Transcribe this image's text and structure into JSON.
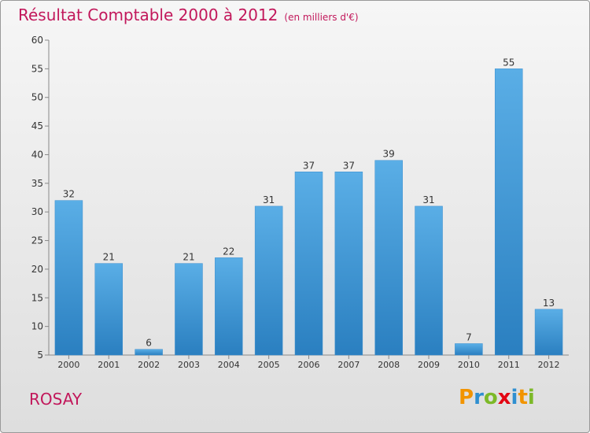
{
  "header": {
    "title": "Résultat Comptable 2000 à 2012",
    "subtitle": "(en milliers d'€)"
  },
  "footer": {
    "town": "ROSAY",
    "logo": "Proxiti"
  },
  "colors": {
    "title": "#c2185b",
    "bar_top": "#5aaee6",
    "bar_bottom": "#2a7fc0"
  },
  "chart_data": {
    "type": "bar",
    "title": "Résultat Comptable 2000 à 2012 (en milliers d'€)",
    "xlabel": "",
    "ylabel": "",
    "categories": [
      "2000",
      "2001",
      "2002",
      "2003",
      "2004",
      "2005",
      "2006",
      "2007",
      "2008",
      "2009",
      "2010",
      "2011",
      "2012"
    ],
    "values": [
      32,
      21,
      6,
      21,
      22,
      31,
      37,
      37,
      39,
      31,
      7,
      55,
      13
    ],
    "ylim": [
      5,
      60
    ],
    "yticks": [
      5,
      10,
      15,
      20,
      25,
      30,
      35,
      40,
      45,
      50,
      55,
      60
    ],
    "grid": false,
    "data_labels": true
  }
}
